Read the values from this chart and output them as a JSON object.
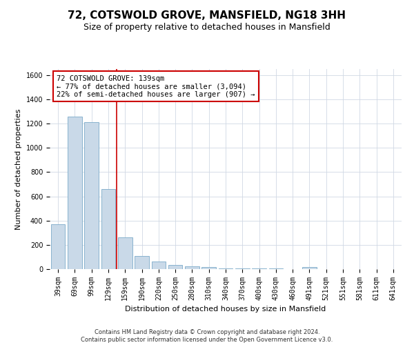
{
  "title": "72, COTSWOLD GROVE, MANSFIELD, NG18 3HH",
  "subtitle": "Size of property relative to detached houses in Mansfield",
  "xlabel": "Distribution of detached houses by size in Mansfield",
  "ylabel": "Number of detached properties",
  "categories": [
    "39sqm",
    "69sqm",
    "99sqm",
    "129sqm",
    "159sqm",
    "190sqm",
    "220sqm",
    "250sqm",
    "280sqm",
    "310sqm",
    "340sqm",
    "370sqm",
    "400sqm",
    "430sqm",
    "460sqm",
    "491sqm",
    "521sqm",
    "551sqm",
    "581sqm",
    "611sqm",
    "641sqm"
  ],
  "values": [
    370,
    1260,
    1210,
    660,
    260,
    110,
    65,
    35,
    25,
    15,
    8,
    8,
    8,
    8,
    2,
    15,
    2,
    2,
    2,
    2,
    2
  ],
  "bar_color": "#c9d9e8",
  "bar_edge_color": "#7aaac8",
  "red_line_x": 3.5,
  "annotation_text": "72 COTSWOLD GROVE: 139sqm\n← 77% of detached houses are smaller (3,094)\n22% of semi-detached houses are larger (907) →",
  "annotation_box_color": "#ffffff",
  "annotation_box_edge_color": "#cc0000",
  "ylim": [
    0,
    1650
  ],
  "yticks": [
    0,
    200,
    400,
    600,
    800,
    1000,
    1200,
    1400,
    1600
  ],
  "footer_text": "Contains HM Land Registry data © Crown copyright and database right 2024.\nContains public sector information licensed under the Open Government Licence v3.0.",
  "background_color": "#ffffff",
  "grid_color": "#d0d8e4",
  "title_fontsize": 11,
  "subtitle_fontsize": 9,
  "axis_label_fontsize": 8,
  "tick_fontsize": 7,
  "annotation_fontsize": 7.5,
  "footer_fontsize": 6
}
